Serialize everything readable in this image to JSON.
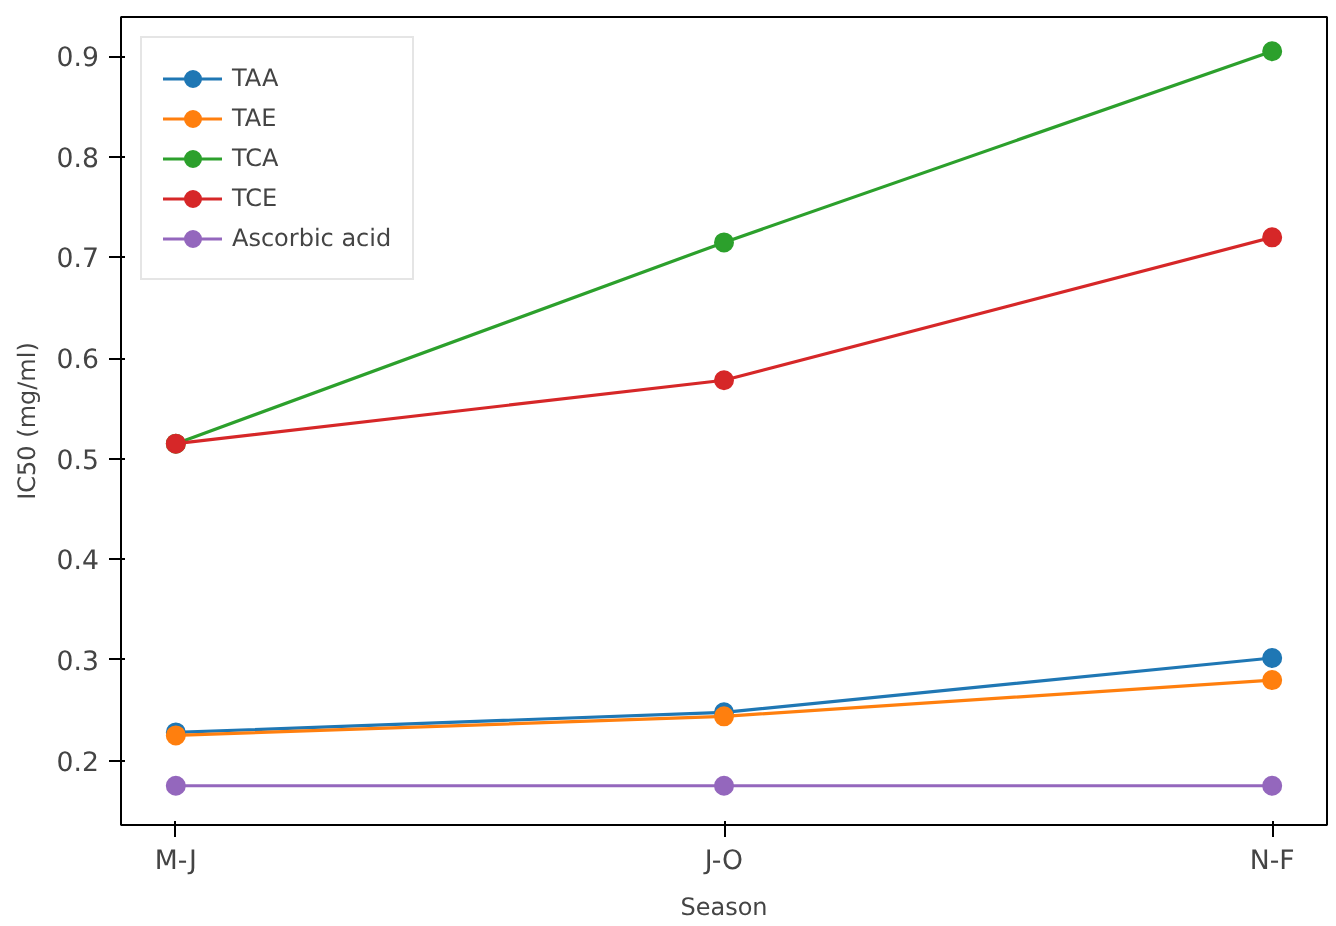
{
  "chart_data": {
    "type": "line",
    "xlabel": "Season",
    "ylabel": "IC50 (mg/ml)",
    "categories": [
      "M-J",
      "J-O",
      "N-F"
    ],
    "series": [
      {
        "name": "TAA",
        "color": "#1f77b4",
        "values": [
          0.228,
          0.248,
          0.302
        ]
      },
      {
        "name": "TAE",
        "color": "#ff7f0e",
        "values": [
          0.225,
          0.244,
          0.28
        ]
      },
      {
        "name": "TCA",
        "color": "#2ca02c",
        "values": [
          0.515,
          0.715,
          0.905
        ]
      },
      {
        "name": "TCE",
        "color": "#d62728",
        "values": [
          0.515,
          0.578,
          0.72
        ]
      },
      {
        "name": "Ascorbic acid",
        "color": "#9467bd",
        "values": [
          0.175,
          0.175,
          0.175
        ]
      }
    ],
    "ylim": [
      0.136,
      0.939
    ],
    "yticks": [
      0.2,
      0.3,
      0.4,
      0.5,
      0.6,
      0.7,
      0.8,
      0.9
    ],
    "grid": false,
    "legend": "top left",
    "marker": "circle",
    "line_style": "solid"
  }
}
